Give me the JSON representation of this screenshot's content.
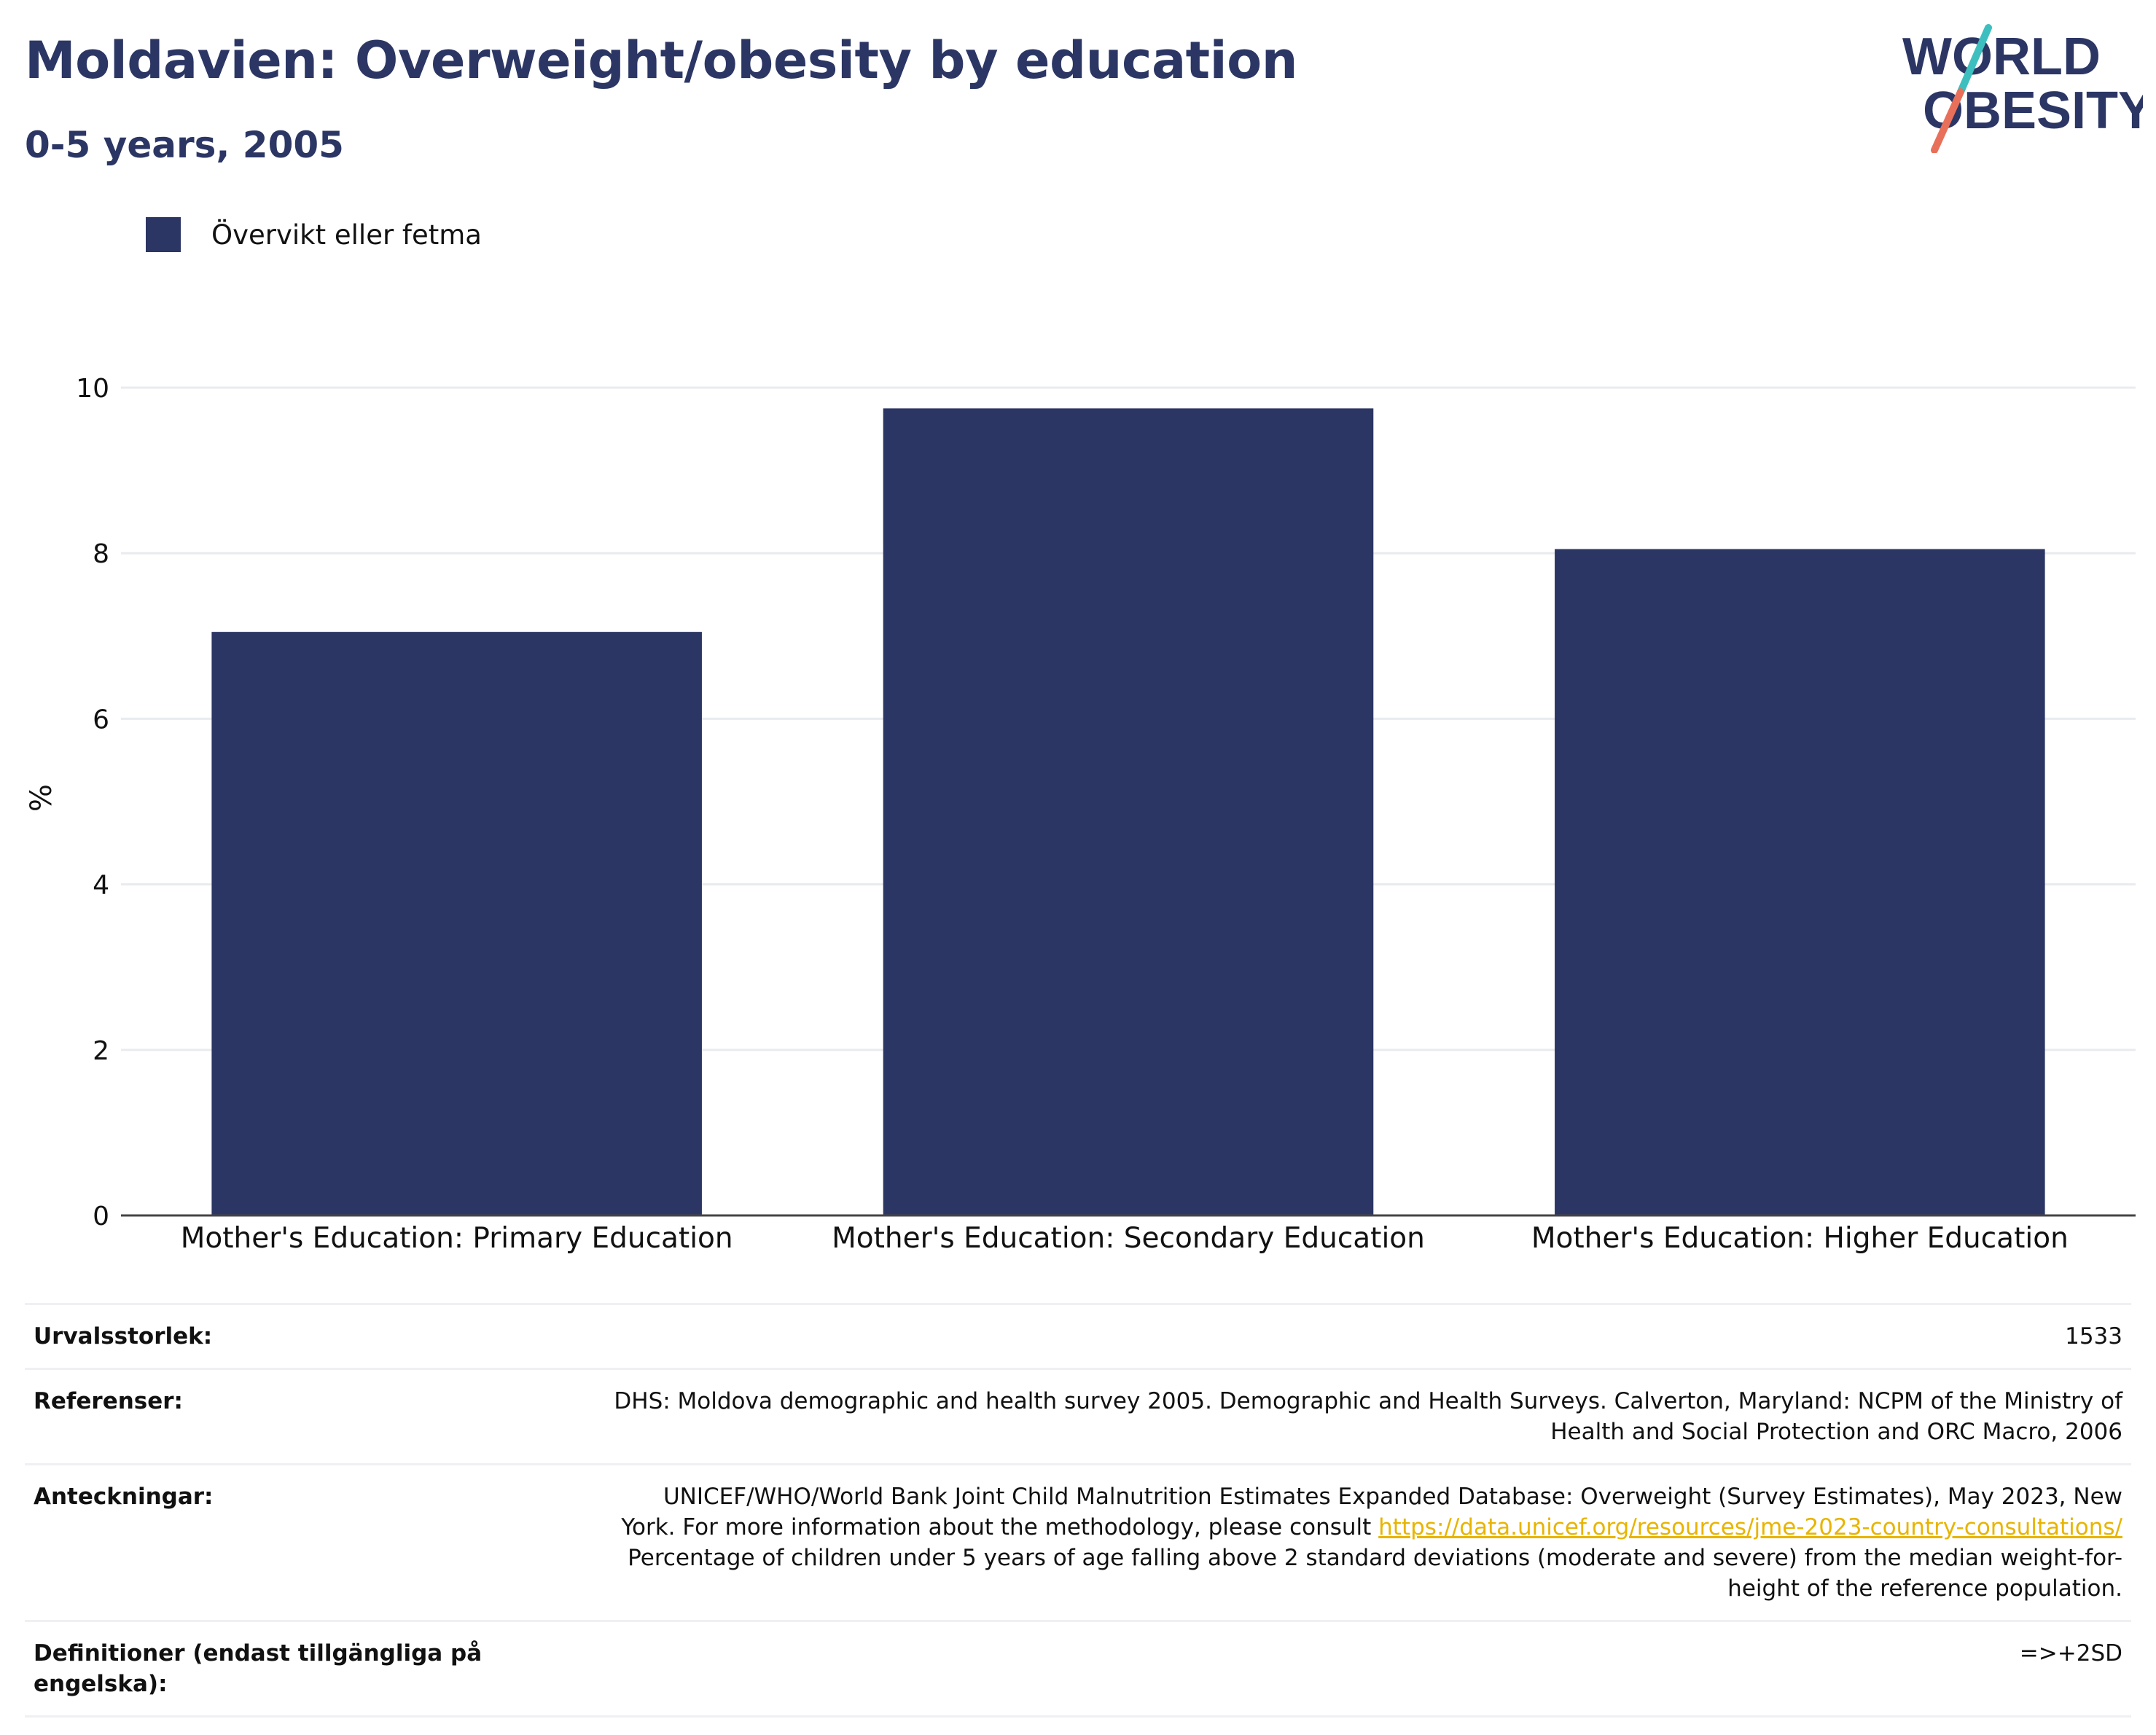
{
  "header": {
    "title": "Moldavien: Overweight/obesity by education",
    "subtitle": "0-5 years, 2005"
  },
  "logo": {
    "line1": "WORLD",
    "line2": "OBESITY",
    "colors": {
      "text": "#2b3664",
      "stroke_top": "#3dbfbf",
      "stroke_bottom": "#e8705a"
    }
  },
  "legend": {
    "label": "Övervikt eller fetma",
    "color": "#2b3664"
  },
  "chart_data": {
    "type": "bar",
    "categories": [
      "Mother's Education: Primary Education",
      "Mother's Education: Secondary Education",
      "Mother's Education: Higher Education"
    ],
    "series": [
      {
        "name": "Övervikt eller fetma",
        "values": [
          7.05,
          9.75,
          8.05
        ],
        "color": "#2b3664"
      }
    ],
    "ylabel": "%",
    "ylim": [
      0,
      10.5
    ],
    "yticks": [
      0,
      2,
      4,
      6,
      8,
      10
    ],
    "grid": true
  },
  "info": {
    "sample_size": {
      "label": "Urvalsstorlek:",
      "value": "1533"
    },
    "references": {
      "label": "Referenser:",
      "line1": "DHS: Moldova demographic and health survey 2005. Demographic and Health Surveys. Calverton, Maryland: NCPM of the Ministry of",
      "line2": "Health and Social Protection and ORC Macro, 2006"
    },
    "notes": {
      "label": "Anteckningar:",
      "line1": "UNICEF/WHO/World Bank Joint Child Malnutrition Estimates Expanded Database: Overweight (Survey Estimates), May 2023, New",
      "line2_prefix": "York. For more information about the methodology, please consult",
      "link": "https://data.unicef.org/resources/jme-2023-country-consultations/",
      "line3": "Percentage of children under 5 years of age falling above 2 standard deviations (moderate and severe) from the median weight-for-",
      "line4": "height of the reference population."
    },
    "definitions": {
      "label_line1": "Definitioner (endast tillgängliga på",
      "label_line2": "engelska):",
      "value": "=>+2SD"
    }
  }
}
